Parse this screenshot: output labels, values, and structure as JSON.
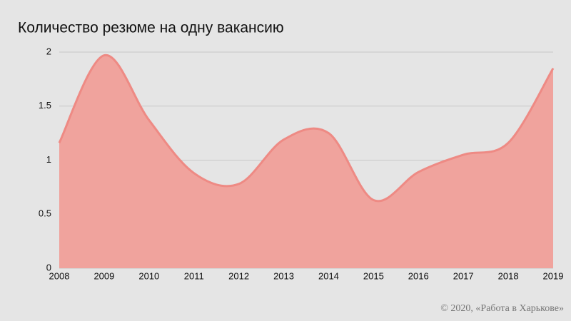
{
  "chart_data": {
    "type": "area",
    "title": "Количество резюме на одну вакансию",
    "x": [
      2008,
      2009,
      2010,
      2011,
      2012,
      2013,
      2014,
      2015,
      2016,
      2017,
      2018,
      2019
    ],
    "values": [
      1.16,
      1.97,
      1.37,
      0.88,
      0.78,
      1.19,
      1.25,
      0.63,
      0.89,
      1.05,
      1.16,
      1.85
    ],
    "color": "#ee8a84",
    "fill": "#f0a39d",
    "xlim": [
      2008,
      2019
    ],
    "xticks": [
      2008,
      2009,
      2010,
      2011,
      2012,
      2013,
      2014,
      2015,
      2016,
      2017,
      2018,
      2019
    ],
    "ylim": [
      0,
      2
    ],
    "yticks": [
      0,
      0.5,
      1,
      1.5,
      2
    ],
    "grid": true,
    "footer": "© 2020, «Работа в Харькове»"
  }
}
